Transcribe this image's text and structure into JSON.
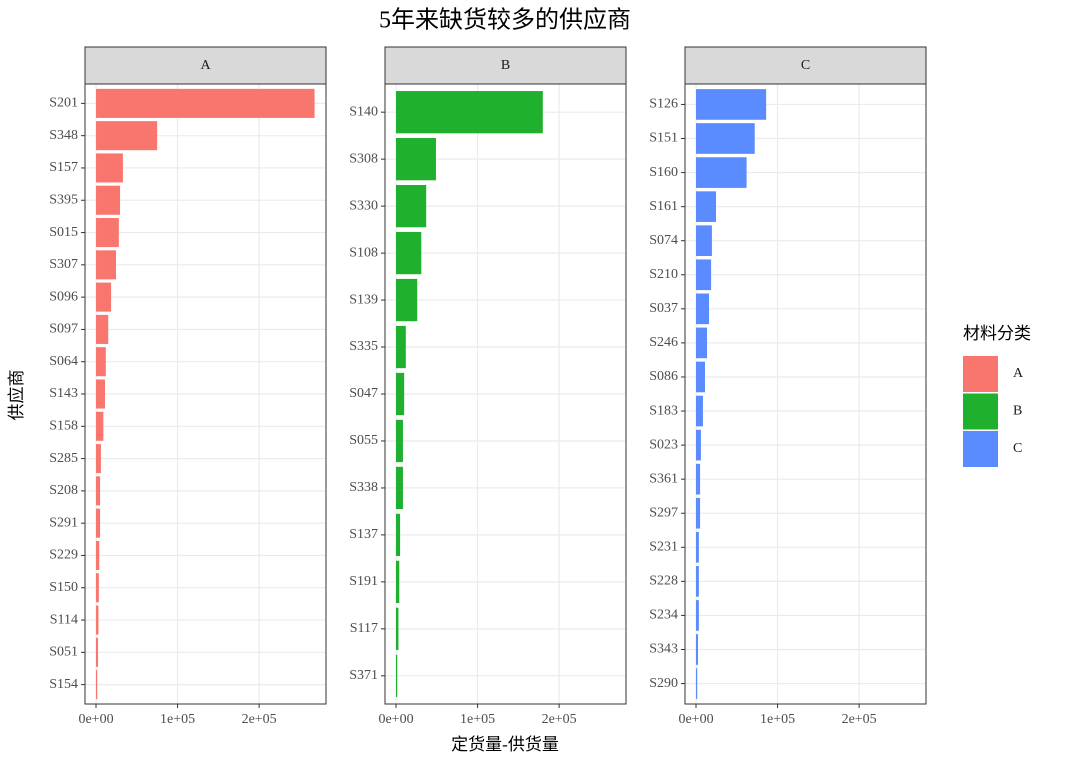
{
  "chart_data": {
    "type": "bar",
    "orientation": "horizontal",
    "title": "5年来缺货较多的供应商",
    "x_label": "定货量-供货量",
    "y_label": "供应商",
    "legend_title": "材料分类",
    "xlim": [
      -13500,
      282000
    ],
    "xticks": [
      {
        "value": 0,
        "label": "0e+00"
      },
      {
        "value": 100000,
        "label": "1e+05"
      },
      {
        "value": 200000,
        "label": "2e+05"
      }
    ],
    "grid": true,
    "series": [
      {
        "name": "A",
        "color": "#f8766d",
        "categories": [
          "S201",
          "S348",
          "S157",
          "S395",
          "S015",
          "S307",
          "S096",
          "S097",
          "S064",
          "S143",
          "S158",
          "S285",
          "S208",
          "S291",
          "S229",
          "S150",
          "S114",
          "S051",
          "S154"
        ],
        "values": [
          268000,
          75000,
          33000,
          29500,
          28000,
          24500,
          18500,
          15000,
          12000,
          11000,
          9000,
          6000,
          5000,
          5000,
          4000,
          3500,
          3000,
          2500,
          1500
        ]
      },
      {
        "name": "B",
        "color": "#1fb02e",
        "categories": [
          "S140",
          "S308",
          "S330",
          "S108",
          "S139",
          "S335",
          "S047",
          "S055",
          "S338",
          "S137",
          "S191",
          "S117",
          "S371"
        ],
        "values": [
          180000,
          49000,
          37000,
          31000,
          26000,
          12000,
          10000,
          8500,
          8500,
          5000,
          4000,
          3000,
          1500
        ]
      },
      {
        "name": "C",
        "color": "#5a8cff",
        "categories": [
          "S126",
          "S151",
          "S160",
          "S161",
          "S074",
          "S210",
          "S037",
          "S246",
          "S086",
          "S183",
          "S023",
          "S361",
          "S297",
          "S231",
          "S228",
          "S234",
          "S343",
          "S290"
        ],
        "values": [
          86000,
          72000,
          62000,
          24500,
          19500,
          18500,
          16000,
          13500,
          11000,
          8500,
          6000,
          5000,
          5000,
          3500,
          3500,
          3500,
          2500,
          1500
        ]
      }
    ]
  }
}
